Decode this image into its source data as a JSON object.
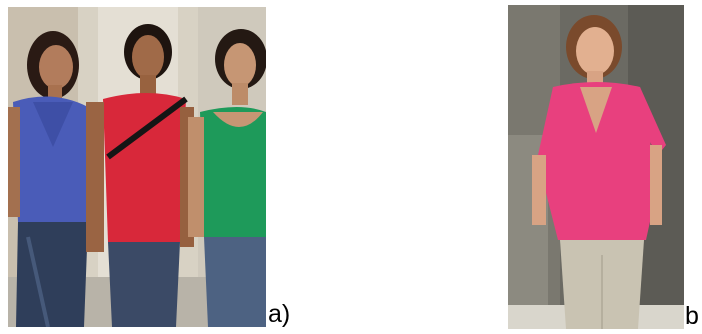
{
  "panels": [
    {
      "label": "a)"
    },
    {
      "label": "b"
    }
  ]
}
